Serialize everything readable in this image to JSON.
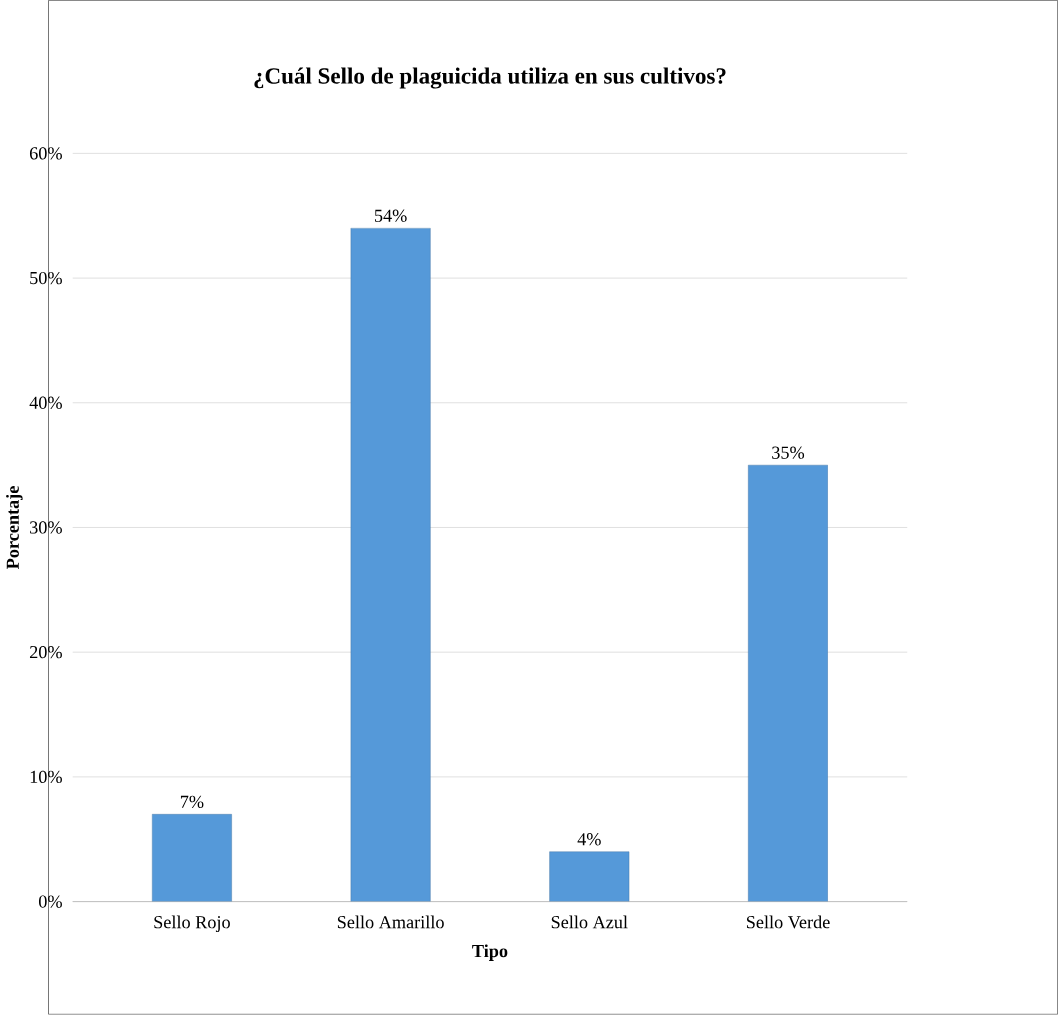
{
  "chart_data": {
    "type": "bar",
    "title": "¿Cuál Sello de plaguicida utiliza en sus cultivos?",
    "xlabel": "Tipo",
    "ylabel": "Porcentaje",
    "categories": [
      "Sello Rojo",
      "Sello Amarillo",
      "Sello Azul",
      "Sello Verde"
    ],
    "values": [
      7,
      54,
      4,
      35
    ],
    "value_labels": [
      "7%",
      "54%",
      "4%",
      "35%"
    ],
    "color": "#5599d9",
    "ylim": [
      0,
      60
    ],
    "yticks": [
      {
        "value": 0,
        "label": "0%"
      },
      {
        "value": 10,
        "label": "10%"
      },
      {
        "value": 20,
        "label": "20%"
      },
      {
        "value": 30,
        "label": "30%"
      },
      {
        "value": 40,
        "label": "40%"
      },
      {
        "value": 50,
        "label": "50%"
      },
      {
        "value": 60,
        "label": "60%"
      }
    ],
    "grid": "y"
  }
}
